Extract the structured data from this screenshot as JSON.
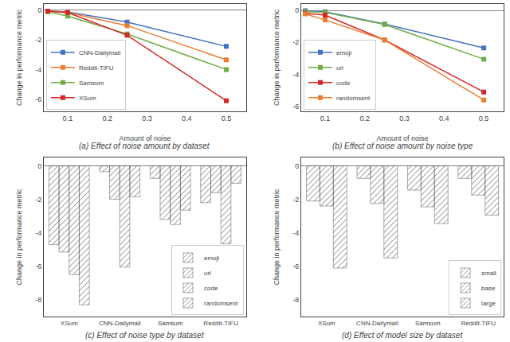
{
  "chart_data": [
    {
      "type": "line",
      "title": "(a) Effect of noise amount by dataset",
      "x_label": "Amount of noise",
      "y_label": "Change in performance metric",
      "x": [
        0.05,
        0.1,
        0.25,
        0.5
      ],
      "series": [
        {
          "name": "CNN-Dailymail",
          "color": "#4472c4",
          "values": [
            -0.08,
            -0.13,
            -0.82,
            -2.45
          ]
        },
        {
          "name": "Reddit-TIFU",
          "color": "#ed7d31",
          "values": [
            -0.08,
            -0.18,
            -1.05,
            -3.35
          ]
        },
        {
          "name": "Samsum",
          "color": "#70ad47",
          "values": [
            -0.12,
            -0.42,
            -1.62,
            -4.0
          ]
        },
        {
          "name": "XSum",
          "color": "#d62728",
          "values": [
            -0.08,
            -0.18,
            -1.7,
            -6.1
          ]
        }
      ],
      "xlim": [
        0.04,
        0.55
      ],
      "xticks": [
        0.1,
        0.2,
        0.3,
        0.4,
        0.5
      ],
      "ylim": [
        -6.8,
        0.4
      ],
      "yticks": [
        -6,
        -4,
        -2,
        0
      ],
      "grid": false,
      "legend": "lower left",
      "marker": "square"
    },
    {
      "type": "line",
      "title": "(b) Effect of noise amount by noise type",
      "x_label": "Amount of noise",
      "y_label": "Change in performance metric",
      "x": [
        0.05,
        0.1,
        0.25,
        0.5
      ],
      "series": [
        {
          "name": "emoji",
          "color": "#4472c4",
          "values": [
            -0.02,
            -0.08,
            -0.85,
            -2.35
          ]
        },
        {
          "name": "url",
          "color": "#70ad47",
          "values": [
            -0.08,
            -0.12,
            -0.88,
            -3.05
          ]
        },
        {
          "name": "code",
          "color": "#d62728",
          "values": [
            -0.18,
            -0.3,
            -1.85,
            -5.1
          ]
        },
        {
          "name": "randomsent",
          "color": "#ed7d31",
          "values": [
            -0.22,
            -0.6,
            -1.85,
            -5.6
          ]
        }
      ],
      "xlim": [
        0.04,
        0.55
      ],
      "xticks": [
        0.1,
        0.2,
        0.3,
        0.4,
        0.5
      ],
      "ylim": [
        -6.3,
        0.4
      ],
      "yticks": [
        -6,
        -4,
        -2,
        0
      ],
      "grid": false,
      "legend": "lower left",
      "marker": "square"
    },
    {
      "type": "bar",
      "title": "(c) Effect of noise type by dataset",
      "y_label": "Change in performance metric",
      "categories": [
        "XSum",
        "CNN-Dailymail",
        "Samsum",
        "Reddit-TIFU"
      ],
      "series": [
        {
          "name": "emoji",
          "color": "#aec6e8",
          "values": [
            -4.7,
            -0.35,
            -0.75,
            -2.2
          ]
        },
        {
          "name": "url",
          "color": "#a8d08d",
          "values": [
            -5.15,
            -2.0,
            -3.2,
            -1.6
          ]
        },
        {
          "name": "code",
          "color": "#f4a3a8",
          "values": [
            -6.5,
            -6.05,
            -3.5,
            -4.65
          ]
        },
        {
          "name": "randomsent",
          "color": "#ffc000",
          "values": [
            -8.3,
            -1.85,
            -2.65,
            -1.05
          ]
        }
      ],
      "ylim": [
        -9.0,
        0.5
      ],
      "yticks": [
        -8,
        -6,
        -4,
        -2,
        0
      ],
      "grid": false,
      "legend": "lower right"
    },
    {
      "type": "bar",
      "title": "(d) Effect of model size by dataset",
      "y_label": "Change in performance metric",
      "categories": [
        "XSum",
        "CNN-Dailymail",
        "Samsum",
        "Reddit-TIFU"
      ],
      "series": [
        {
          "name": "small",
          "color": "#bdd7ee",
          "values": [
            -2.1,
            -0.75,
            -1.45,
            -0.75
          ]
        },
        {
          "name": "base",
          "color": "#9dc3e6",
          "values": [
            -2.4,
            -2.25,
            -2.45,
            -1.75
          ]
        },
        {
          "name": "large",
          "color": "#2e75b6",
          "values": [
            -6.1,
            -5.5,
            -3.45,
            -2.95
          ]
        }
      ],
      "ylim": [
        -9.0,
        0.5
      ],
      "yticks": [
        -8,
        -6,
        -4,
        -2,
        0
      ],
      "grid": false,
      "legend": "lower right"
    }
  ]
}
